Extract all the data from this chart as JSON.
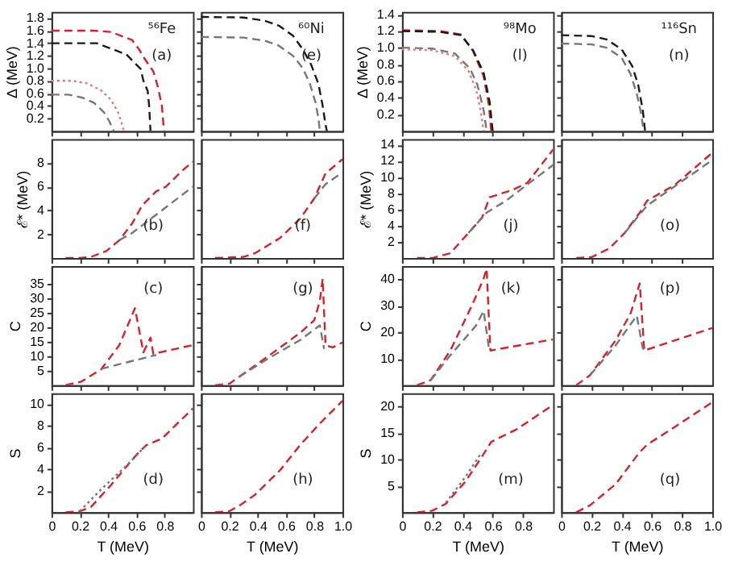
{
  "chart_data": [
    {
      "type": "line",
      "ylabel": "Δ (MeV)",
      "annotations": [
        "⁵⁶Fe",
        "(a)"
      ],
      "xlim": [
        0,
        1
      ],
      "xticks": [
        0,
        0.2,
        0.4,
        0.6,
        0.8
      ],
      "ylim": [
        0,
        1.9
      ],
      "yticks": [
        0.2,
        0.4,
        0.6,
        0.8,
        {
          "value": 1,
          "label": "1.0"
        },
        1.2,
        1.4,
        1.6,
        1.8
      ],
      "tick_labels": "y",
      "series": [
        {
          "color": "#d8202a",
          "line_style": "dashed",
          "x": [
            0,
            0.3,
            0.42,
            0.57,
            0.62,
            0.65,
            0.72,
            0.75,
            0.78,
            0.795
          ],
          "values": [
            1.6,
            1.6,
            1.58,
            1.45,
            1.3,
            1.18,
            0.95,
            0.72,
            0.41,
            0
          ]
        },
        {
          "color": "#1a1a1a",
          "line_style": "dashed",
          "x": [
            0,
            0.32,
            0.53,
            0.63,
            0.65,
            0.68,
            0.69,
            0.7
          ],
          "values": [
            1.4,
            1.4,
            1.22,
            0.99,
            0.8,
            0.64,
            0.41,
            0
          ]
        },
        {
          "color": "#e87878",
          "line_style": "dotted",
          "x": [
            0,
            0.15,
            0.25,
            0.35,
            0.42,
            0.47,
            0.5,
            0.51
          ],
          "values": [
            0.8,
            0.8,
            0.76,
            0.65,
            0.5,
            0.3,
            0.1,
            0
          ]
        },
        {
          "color": "#777777",
          "line_style": "dashed",
          "x": [
            0,
            0.12,
            0.22,
            0.3,
            0.37,
            0.41,
            0.44
          ],
          "values": [
            0.58,
            0.58,
            0.53,
            0.45,
            0.3,
            0.15,
            0
          ]
        }
      ]
    },
    {
      "type": "line",
      "annotations": [
        "⁶⁰Ni",
        "(e)"
      ],
      "xlim": [
        0,
        1
      ],
      "xticks": [
        0,
        0.2,
        0.4,
        0.6,
        0.8
      ],
      "ylim": [
        0,
        1.9
      ],
      "yticks": [
        0.2,
        0.4,
        0.6,
        0.8,
        1,
        1.2,
        1.4,
        1.6,
        1.8
      ],
      "tick_labels": false,
      "series": [
        {
          "color": "#1a1a1a",
          "line_style": "dashed",
          "x": [
            0,
            0.3,
            0.45,
            0.55,
            0.65,
            0.72,
            0.78,
            0.83,
            0.86,
            0.88,
            0.89
          ],
          "values": [
            1.82,
            1.81,
            1.76,
            1.68,
            1.52,
            1.3,
            1.05,
            0.75,
            0.4,
            0.1,
            0
          ]
        },
        {
          "color": "#777777",
          "line_style": "dashed",
          "x": [
            0,
            0.3,
            0.45,
            0.55,
            0.65,
            0.72,
            0.77,
            0.81,
            0.83,
            0.84
          ],
          "values": [
            1.5,
            1.49,
            1.44,
            1.36,
            1.2,
            1.0,
            0.75,
            0.45,
            0.2,
            0
          ]
        }
      ]
    },
    {
      "type": "line",
      "ylabel": "Δ (MeV)",
      "annotations": [
        "⁹⁸Mo",
        "(l)"
      ],
      "xlim": [
        0,
        1
      ],
      "xticks": [
        0,
        0.2,
        0.4,
        0.6,
        0.8
      ],
      "ylim": [
        0,
        1.43
      ],
      "yticks": [
        0.2,
        0.4,
        0.6,
        0.8,
        {
          "value": 1,
          "label": "1.0"
        },
        1.2,
        1.4
      ],
      "tick_labels": "y",
      "series": [
        {
          "color": "#d8202a",
          "line_style": "dashed",
          "x": [
            0,
            0.25,
            0.39,
            0.47,
            0.54,
            0.575,
            0.59
          ],
          "values": [
            1.21,
            1.2,
            1.16,
            0.96,
            0.66,
            0.31,
            0
          ]
        },
        {
          "color": "#1a1a1a",
          "line_style": "dashed",
          "x": [
            0,
            0.25,
            0.39,
            0.47,
            0.54,
            0.58,
            0.6
          ],
          "values": [
            1.2,
            1.19,
            1.15,
            0.97,
            0.7,
            0.35,
            0
          ]
        },
        {
          "color": "#777777",
          "line_style": "dashed",
          "x": [
            0,
            0.2,
            0.35,
            0.45,
            0.5,
            0.54,
            0.56
          ],
          "values": [
            1.0,
            0.99,
            0.93,
            0.75,
            0.55,
            0.25,
            0
          ]
        },
        {
          "color": "#e87878",
          "line_style": "dotted",
          "x": [
            0,
            0.2,
            0.35,
            0.44,
            0.49,
            0.52,
            0.54
          ],
          "values": [
            0.98,
            0.97,
            0.9,
            0.72,
            0.5,
            0.25,
            0
          ]
        }
      ]
    },
    {
      "type": "line",
      "annotations": [
        "¹¹⁶Sn",
        "(n)"
      ],
      "xlim": [
        0,
        1
      ],
      "xticks": [
        0,
        0.2,
        0.4,
        0.6,
        0.8
      ],
      "ylim": [
        0,
        1.43
      ],
      "yticks": [
        0.2,
        0.4,
        0.6,
        0.8,
        1,
        1.2,
        1.4
      ],
      "tick_labels": false,
      "series": [
        {
          "color": "#1a1a1a",
          "line_style": "dashed",
          "x": [
            0,
            0.2,
            0.3,
            0.4,
            0.47,
            0.51,
            0.54,
            0.555
          ],
          "values": [
            1.15,
            1.14,
            1.1,
            0.98,
            0.78,
            0.55,
            0.25,
            0
          ]
        },
        {
          "color": "#777777",
          "line_style": "dashed",
          "x": [
            0,
            0.2,
            0.3,
            0.4,
            0.46,
            0.5,
            0.53,
            0.545
          ],
          "values": [
            1.05,
            1.04,
            1.0,
            0.88,
            0.68,
            0.45,
            0.2,
            0
          ]
        }
      ]
    },
    {
      "type": "line",
      "ylabel": "ℰ* (MeV)",
      "annotations": [
        "(b)"
      ],
      "xlim": [
        0,
        1
      ],
      "xticks": [
        0,
        0.2,
        0.4,
        0.6,
        0.8
      ],
      "ylim": [
        0,
        10
      ],
      "yticks": [
        2,
        4,
        6,
        8
      ],
      "tick_labels": "y",
      "series": [
        {
          "color": "#d8202a",
          "line_style": "dashed",
          "x": [
            0.1,
            0.2,
            0.28,
            0.39,
            0.48,
            0.57,
            0.64,
            0.74,
            0.81,
            0.92,
            1.0
          ],
          "values": [
            0,
            0,
            0.1,
            0.6,
            1.5,
            2.9,
            4.4,
            5.6,
            6.0,
            7.3,
            8.1
          ]
        },
        {
          "color": "#777777",
          "line_style": "dashed",
          "x": [
            0.48,
            0.57,
            0.78,
            1.0
          ],
          "values": [
            1.5,
            2.1,
            4.0,
            6.0
          ]
        }
      ]
    },
    {
      "type": "line",
      "annotations": [
        "(f)"
      ],
      "xlim": [
        0,
        1
      ],
      "xticks": [
        0,
        0.2,
        0.4,
        0.6,
        0.8
      ],
      "ylim": [
        0,
        10
      ],
      "yticks": [
        2,
        4,
        6,
        8
      ],
      "tick_labels": false,
      "series": [
        {
          "color": "#d8202a",
          "line_style": "dashed",
          "x": [
            0.1,
            0.3,
            0.38,
            0.56,
            0.7,
            0.8,
            0.88,
            1.0
          ],
          "values": [
            0,
            0.1,
            0.4,
            1.7,
            3.3,
            5.0,
            7.1,
            8.3
          ]
        },
        {
          "color": "#777777",
          "line_style": "dashed",
          "x": [
            0.8,
            0.88,
            1.0
          ],
          "values": [
            5.0,
            6.2,
            7.2
          ]
        }
      ]
    },
    {
      "type": "line",
      "ylabel": "ℰ* (MeV)",
      "annotations": [
        "(j)"
      ],
      "xlim": [
        0,
        1
      ],
      "xticks": [
        0,
        0.2,
        0.4,
        0.6,
        0.8
      ],
      "ylim": [
        0,
        14.7
      ],
      "yticks": [
        2,
        4,
        6,
        8,
        10,
        12,
        14
      ],
      "tick_labels": "y",
      "series": [
        {
          "color": "#d8202a",
          "line_style": "dashed",
          "x": [
            0.1,
            0.2,
            0.32,
            0.44,
            0.53,
            0.58,
            0.73,
            0.83,
            1.0
          ],
          "values": [
            0,
            0,
            0.6,
            3.1,
            5.0,
            7.5,
            8.4,
            9.3,
            13.4
          ]
        },
        {
          "color": "#777777",
          "line_style": "dashed",
          "x": [
            0.44,
            0.56,
            0.69,
            1.0
          ],
          "values": [
            3.1,
            5.6,
            7.1,
            11.5
          ]
        }
      ]
    },
    {
      "type": "line",
      "annotations": [
        "(o)"
      ],
      "xlim": [
        0,
        1
      ],
      "xticks": [
        0,
        0.2,
        0.4,
        0.6,
        0.8
      ],
      "ylim": [
        0,
        14.7
      ],
      "yticks": [
        2,
        4,
        6,
        8,
        10,
        12,
        14
      ],
      "tick_labels": false,
      "series": [
        {
          "color": "#d8202a",
          "line_style": "dashed",
          "x": [
            0.1,
            0.2,
            0.32,
            0.42,
            0.52,
            0.57,
            0.75,
            1.0
          ],
          "values": [
            0,
            0.1,
            1.2,
            3.1,
            5.6,
            7.1,
            9.0,
            13.0
          ]
        },
        {
          "color": "#777777",
          "line_style": "dashed",
          "x": [
            0.42,
            0.52,
            0.57,
            1.0
          ],
          "values": [
            3.1,
            5.4,
            6.5,
            12.1
          ]
        }
      ]
    },
    {
      "type": "line",
      "ylabel": "C",
      "annotations": [
        "(c)"
      ],
      "xlim": [
        0,
        1
      ],
      "xticks": [
        0,
        0.2,
        0.4,
        0.6,
        0.8
      ],
      "ylim": [
        0,
        41
      ],
      "yticks": [
        5,
        10,
        15,
        20,
        25,
        30,
        35
      ],
      "tick_labels": "y",
      "series": [
        {
          "color": "#d8202a",
          "line_style": "dashed",
          "x": [
            0.1,
            0.21,
            0.35,
            0.48,
            0.59,
            0.65,
            0.7,
            0.72,
            1.0
          ],
          "values": [
            0,
            1.2,
            5.4,
            13.8,
            26.5,
            11.3,
            16.4,
            10.8,
            13.8
          ]
        },
        {
          "color": "#777777",
          "line_style": "dashed",
          "x": [
            0.35,
            0.74
          ],
          "values": [
            5.6,
            10.4
          ]
        }
      ]
    },
    {
      "type": "line",
      "annotations": [
        "(g)"
      ],
      "xlim": [
        0,
        1
      ],
      "xticks": [
        0,
        0.2,
        0.4,
        0.6,
        0.8
      ],
      "ylim": [
        0,
        41
      ],
      "yticks": [
        5,
        10,
        15,
        20,
        25,
        30,
        35
      ],
      "tick_labels": false,
      "series": [
        {
          "color": "#d8202a",
          "line_style": "dashed",
          "x": [
            0.1,
            0.2,
            0.27,
            0.49,
            0.7,
            0.8,
            0.84,
            0.86,
            0.88,
            0.93,
            1.0
          ],
          "values": [
            0,
            0.5,
            2.9,
            10.5,
            18.0,
            22.3,
            29,
            36.6,
            13.8,
            13.0,
            14.7
          ]
        },
        {
          "color": "#777777",
          "line_style": "dashed",
          "x": [
            0.27,
            0.49,
            0.7,
            0.84,
            0.87
          ],
          "values": [
            2.9,
            9.6,
            15.5,
            20.6,
            12.5
          ]
        }
      ]
    },
    {
      "type": "line",
      "ylabel": "C",
      "annotations": [
        "(k)"
      ],
      "xlim": [
        0,
        1
      ],
      "xticks": [
        0,
        0.2,
        0.4,
        0.6,
        0.8
      ],
      "ylim": [
        0,
        45
      ],
      "yticks": [
        10,
        20,
        30,
        40
      ],
      "tick_labels": "y",
      "series": [
        {
          "color": "#d8202a",
          "line_style": "dashed",
          "x": [
            0.1,
            0.19,
            0.32,
            0.47,
            0.54,
            0.56,
            0.585,
            1.0
          ],
          "values": [
            0,
            1.9,
            13.1,
            31,
            40.3,
            44,
            13.1,
            17.3
          ]
        },
        {
          "color": "#777777",
          "line_style": "dashed",
          "x": [
            0.19,
            0.32,
            0.49,
            0.54,
            0.575
          ],
          "values": [
            1.9,
            11.3,
            22.5,
            28.1,
            14.1
          ]
        }
      ]
    },
    {
      "type": "line",
      "annotations": [
        "(p)"
      ],
      "xlim": [
        0,
        1
      ],
      "xticks": [
        0,
        0.2,
        0.4,
        0.6,
        0.8
      ],
      "ylim": [
        0,
        45
      ],
      "yticks": [
        10,
        20,
        30,
        40
      ],
      "tick_labels": false,
      "series": [
        {
          "color": "#d8202a",
          "line_style": "dashed",
          "x": [
            0.1,
            0.19,
            0.36,
            0.46,
            0.52,
            0.55,
            1.0
          ],
          "values": [
            0,
            3.7,
            16.9,
            27.2,
            38.5,
            13.1,
            21.6
          ]
        },
        {
          "color": "#777777",
          "line_style": "dashed",
          "x": [
            0.19,
            0.36,
            0.5,
            0.54,
            0.55
          ],
          "values": [
            3.7,
            15,
            26.3,
            14,
            13.1
          ]
        }
      ]
    },
    {
      "type": "line",
      "ylabel": "S",
      "xlabel": "T (MeV)",
      "annotations": [
        "(d)"
      ],
      "xlim": [
        0,
        1
      ],
      "xticks": [
        0,
        0.2,
        0.4,
        0.6,
        0.8
      ],
      "ylim": [
        0,
        11
      ],
      "yticks": [
        2,
        4,
        6,
        8,
        10
      ],
      "series": [
        {
          "color": "#d8202a",
          "line_style": "dashed",
          "x": [
            0.1,
            0.2,
            0.28,
            0.42,
            0.6,
            0.67,
            0.78,
            1.0
          ],
          "values": [
            0,
            0.1,
            0.5,
            2.5,
            5.3,
            6.2,
            6.8,
            9.6
          ]
        },
        {
          "color": "#777777",
          "line_style": "dotted",
          "x": [
            0.2,
            0.35,
            0.53,
            0.67
          ],
          "values": [
            0.1,
            2.1,
            4.3,
            6.2
          ]
        }
      ]
    },
    {
      "type": "line",
      "xlabel": "T (MeV)",
      "annotations": [
        "(h)"
      ],
      "xlim": [
        0,
        1
      ],
      "xticks": [
        0,
        0.2,
        0.4,
        0.6,
        0.8,
        {
          "value": 1,
          "label": "1.0"
        }
      ],
      "ylim": [
        0,
        11
      ],
      "yticks": [
        2,
        4,
        6,
        8,
        10
      ],
      "tick_labels": "x",
      "series": [
        {
          "color": "#d8202a",
          "line_style": "dashed",
          "x": [
            0.1,
            0.2,
            0.27,
            0.38,
            0.56,
            0.7,
            0.84,
            1.0
          ],
          "values": [
            0,
            0.1,
            0.6,
            1.6,
            3.9,
            6.2,
            8.2,
            10.3
          ]
        }
      ]
    },
    {
      "type": "line",
      "ylabel": "S",
      "xlabel": "T (MeV)",
      "annotations": [
        "(m)"
      ],
      "xlim": [
        0,
        1
      ],
      "xticks": [
        0,
        0.2,
        0.4,
        0.6,
        0.8
      ],
      "ylim": [
        0,
        22.5
      ],
      "yticks": [
        5,
        10,
        15,
        20
      ],
      "series": [
        {
          "color": "#d8202a",
          "line_style": "dashed",
          "x": [
            0.1,
            0.2,
            0.29,
            0.42,
            0.54,
            0.59,
            0.76,
            1.0
          ],
          "values": [
            0,
            0.3,
            1.6,
            5.8,
            11,
            13.3,
            15.7,
            20.3
          ]
        },
        {
          "color": "#777777",
          "line_style": "dotted",
          "x": [
            0.29,
            0.42,
            0.52
          ],
          "values": [
            1.8,
            6.7,
            11
          ]
        }
      ]
    },
    {
      "type": "line",
      "xlabel": "T (MeV)",
      "annotations": [
        "(q)"
      ],
      "xlim": [
        0,
        1
      ],
      "xticks": [
        0,
        0.2,
        0.4,
        0.6,
        0.8,
        {
          "value": 1,
          "label": "1.0"
        }
      ],
      "ylim": [
        0,
        22.5
      ],
      "yticks": [
        5,
        10,
        15,
        20
      ],
      "tick_labels": "x",
      "series": [
        {
          "color": "#d8202a",
          "line_style": "dashed",
          "x": [
            0.1,
            0.19,
            0.36,
            0.52,
            0.57,
            0.75,
            1.0
          ],
          "values": [
            0,
            1.3,
            5.3,
            11.4,
            12.8,
            16.1,
            20.8
          ]
        }
      ]
    }
  ]
}
